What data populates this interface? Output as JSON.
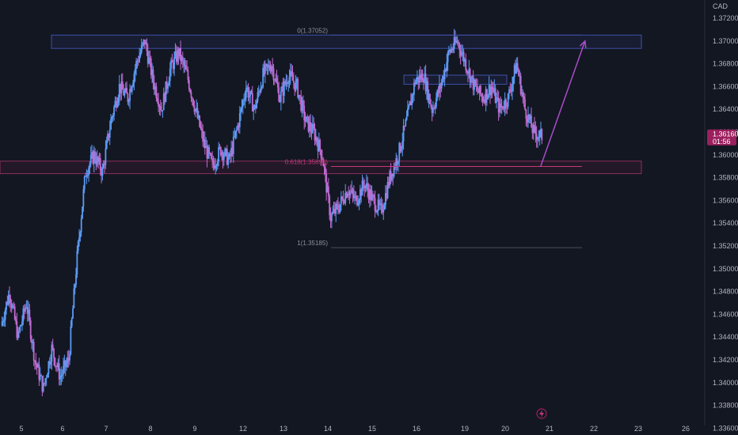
{
  "chart_data": {
    "type": "candlestick",
    "currency": "CAD",
    "ylim": [
      1.3354,
      1.3736
    ],
    "y_ticks": [
      "1.37200",
      "1.37000",
      "1.36800",
      "1.36600",
      "1.36400",
      "1.36200",
      "1.36000",
      "1.35800",
      "1.35600",
      "1.35400",
      "1.35200",
      "1.35000",
      "1.34800",
      "1.34600",
      "1.34400",
      "1.34200",
      "1.34000",
      "1.33800",
      "1.33600"
    ],
    "x_ticks": [
      "5",
      "6",
      "7",
      "8",
      "9",
      "12",
      "13",
      "14",
      "15",
      "16",
      "19",
      "20",
      "21",
      "22",
      "23",
      "26"
    ],
    "last_price": "1.36160",
    "countdown": "01:56",
    "bull_color": "#5b9cf6",
    "bear_color": "#c06ad0",
    "accent_color": "#a94cc9",
    "price_tag_color": "#9c1f5e",
    "path_points": [
      [
        1.345,
        1.348
      ],
      [
        1.348,
        1.344
      ],
      [
        1.344,
        1.347
      ],
      [
        1.347,
        1.342
      ],
      [
        1.342,
        1.3395
      ],
      [
        1.3395,
        1.343
      ],
      [
        1.343,
        1.3405
      ],
      [
        1.3405,
        1.342
      ],
      [
        1.342,
        1.351
      ],
      [
        1.351,
        1.3585
      ],
      [
        1.3585,
        1.36
      ],
      [
        1.36,
        1.3585
      ],
      [
        1.3585,
        1.363
      ],
      [
        1.363,
        1.366
      ],
      [
        1.366,
        1.365
      ],
      [
        1.365,
        1.368
      ],
      [
        1.368,
        1.37
      ],
      [
        1.37,
        1.3665
      ],
      [
        1.3665,
        1.364
      ],
      [
        1.364,
        1.3675
      ],
      [
        1.3675,
        1.369
      ],
      [
        1.369,
        1.367
      ],
      [
        1.367,
        1.364
      ],
      [
        1.364,
        1.361
      ],
      [
        1.361,
        1.359
      ],
      [
        1.359,
        1.3605
      ],
      [
        1.3605,
        1.3595
      ],
      [
        1.3595,
        1.3625
      ],
      [
        1.3625,
        1.366
      ],
      [
        1.366,
        1.364
      ],
      [
        1.364,
        1.367
      ],
      [
        1.367,
        1.368
      ],
      [
        1.368,
        1.365
      ],
      [
        1.365,
        1.367
      ],
      [
        1.367,
        1.366
      ],
      [
        1.366,
        1.363
      ],
      [
        1.363,
        1.362
      ],
      [
        1.362,
        1.36
      ],
      [
        1.36,
        1.3545
      ],
      [
        1.3545,
        1.3555
      ],
      [
        1.3555,
        1.357
      ],
      [
        1.357,
        1.356
      ],
      [
        1.356,
        1.3575
      ],
      [
        1.3575,
        1.356
      ],
      [
        1.356,
        1.355
      ],
      [
        1.355,
        1.358
      ],
      [
        1.358,
        1.36
      ],
      [
        1.36,
        1.363
      ],
      [
        1.363,
        1.3665
      ],
      [
        1.3665,
        1.367
      ],
      [
        1.367,
        1.364
      ],
      [
        1.364,
        1.366
      ],
      [
        1.366,
        1.369
      ],
      [
        1.369,
        1.37
      ],
      [
        1.37,
        1.368
      ],
      [
        1.368,
        1.366
      ],
      [
        1.366,
        1.365
      ],
      [
        1.365,
        1.366
      ],
      [
        1.366,
        1.364
      ],
      [
        1.364,
        1.365
      ],
      [
        1.365,
        1.368
      ],
      [
        1.368,
        1.364
      ],
      [
        1.364,
        1.362
      ],
      [
        1.362,
        1.3616
      ]
    ],
    "zones": [
      {
        "name": "resistance-zone",
        "y_top": 1.37052,
        "y_bottom": 1.36935
      },
      {
        "name": "support-zone",
        "y_top": 1.35945,
        "y_bottom": 1.35835
      },
      {
        "name": "inner-box",
        "y_top": 1.367,
        "y_bottom": 1.3662
      }
    ],
    "fib": {
      "levels": [
        {
          "label": "0(1.37052)",
          "price": 1.37052
        },
        {
          "label": "0.618(1.35898)",
          "price": 1.35898
        },
        {
          "label": "1(1.35185)",
          "price": 1.35185
        }
      ]
    },
    "projection": {
      "from": [
        20.8,
        1.359
      ],
      "to": [
        21.8,
        1.37
      ]
    }
  },
  "ui": {
    "bottom_icon": "lightning-icon"
  }
}
